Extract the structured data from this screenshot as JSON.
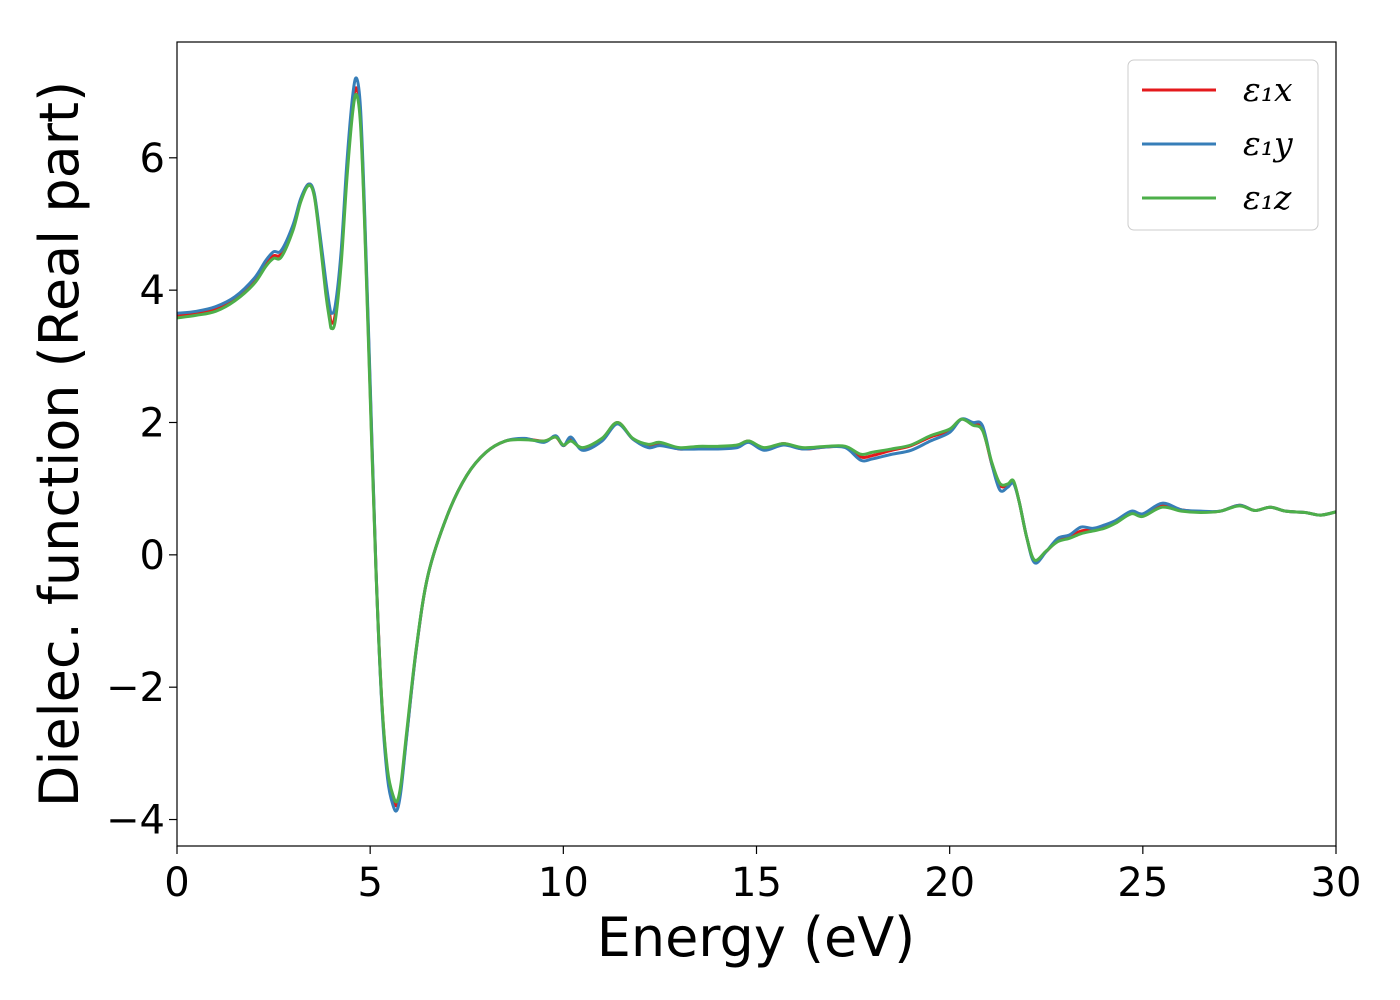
{
  "chart_data": {
    "type": "line",
    "title": "",
    "xlabel": "Energy (eV)",
    "ylabel": "Dielec. function (Real part)",
    "xlim": [
      0,
      30
    ],
    "ylim": [
      -4.4,
      7.75
    ],
    "xticks": [
      0,
      5,
      10,
      15,
      20,
      25,
      30
    ],
    "xtick_labels": [
      "0",
      "5",
      "10",
      "15",
      "20",
      "25",
      "30"
    ],
    "yticks": [
      -4,
      -2,
      0,
      2,
      4,
      6
    ],
    "ytick_labels": [
      "−4",
      "−2",
      "0",
      "2",
      "4",
      "6"
    ],
    "grid": false,
    "legend_position": "top-right",
    "series": [
      {
        "name": "ε₁x",
        "color": "#e41a1c",
        "points": [
          [
            0,
            3.62
          ],
          [
            0.5,
            3.65
          ],
          [
            1.0,
            3.72
          ],
          [
            1.5,
            3.88
          ],
          [
            2.0,
            4.15
          ],
          [
            2.3,
            4.42
          ],
          [
            2.5,
            4.52
          ],
          [
            2.7,
            4.55
          ],
          [
            3.0,
            4.95
          ],
          [
            3.2,
            5.35
          ],
          [
            3.4,
            5.6
          ],
          [
            3.55,
            5.45
          ],
          [
            3.7,
            4.8
          ],
          [
            3.85,
            4.05
          ],
          [
            3.95,
            3.65
          ],
          [
            4.0,
            3.5
          ],
          [
            4.1,
            3.65
          ],
          [
            4.25,
            4.5
          ],
          [
            4.4,
            5.8
          ],
          [
            4.55,
            6.8
          ],
          [
            4.65,
            7.05
          ],
          [
            4.75,
            6.6
          ],
          [
            4.85,
            5.2
          ],
          [
            5.0,
            2.5
          ],
          [
            5.15,
            -0.2
          ],
          [
            5.3,
            -2.2
          ],
          [
            5.45,
            -3.3
          ],
          [
            5.6,
            -3.7
          ],
          [
            5.7,
            -3.78
          ],
          [
            5.8,
            -3.5
          ],
          [
            5.95,
            -2.7
          ],
          [
            6.2,
            -1.4
          ],
          [
            6.5,
            -0.3
          ],
          [
            7.0,
            0.6
          ],
          [
            7.5,
            1.2
          ],
          [
            8.0,
            1.55
          ],
          [
            8.5,
            1.72
          ],
          [
            9.0,
            1.75
          ],
          [
            9.5,
            1.72
          ],
          [
            9.8,
            1.78
          ],
          [
            10.0,
            1.65
          ],
          [
            10.2,
            1.75
          ],
          [
            10.5,
            1.6
          ],
          [
            11.0,
            1.75
          ],
          [
            11.4,
            2.0
          ],
          [
            11.8,
            1.75
          ],
          [
            12.2,
            1.65
          ],
          [
            12.5,
            1.68
          ],
          [
            13.0,
            1.6
          ],
          [
            13.5,
            1.62
          ],
          [
            14.0,
            1.62
          ],
          [
            14.5,
            1.65
          ],
          [
            14.8,
            1.72
          ],
          [
            15.2,
            1.6
          ],
          [
            15.7,
            1.68
          ],
          [
            16.2,
            1.6
          ],
          [
            16.8,
            1.63
          ],
          [
            17.3,
            1.63
          ],
          [
            17.7,
            1.48
          ],
          [
            18.0,
            1.5
          ],
          [
            18.5,
            1.58
          ],
          [
            19.0,
            1.65
          ],
          [
            19.5,
            1.78
          ],
          [
            20.0,
            1.88
          ],
          [
            20.3,
            2.05
          ],
          [
            20.6,
            1.98
          ],
          [
            20.85,
            1.9
          ],
          [
            21.1,
            1.35
          ],
          [
            21.3,
            1.05
          ],
          [
            21.5,
            1.05
          ],
          [
            21.65,
            1.1
          ],
          [
            21.8,
            0.8
          ],
          [
            22.0,
            0.25
          ],
          [
            22.2,
            -0.1
          ],
          [
            22.5,
            0.05
          ],
          [
            22.8,
            0.22
          ],
          [
            23.1,
            0.28
          ],
          [
            23.4,
            0.36
          ],
          [
            23.7,
            0.38
          ],
          [
            24.0,
            0.42
          ],
          [
            24.3,
            0.5
          ],
          [
            24.7,
            0.64
          ],
          [
            25.0,
            0.6
          ],
          [
            25.5,
            0.75
          ],
          [
            26.0,
            0.68
          ],
          [
            26.5,
            0.65
          ],
          [
            27.0,
            0.66
          ],
          [
            27.5,
            0.75
          ],
          [
            27.9,
            0.67
          ],
          [
            28.3,
            0.72
          ],
          [
            28.7,
            0.66
          ],
          [
            29.2,
            0.64
          ],
          [
            29.6,
            0.6
          ],
          [
            30.0,
            0.65
          ]
        ]
      },
      {
        "name": "ε₁y",
        "color": "#377eb8",
        "points": [
          [
            0,
            3.65
          ],
          [
            0.5,
            3.68
          ],
          [
            1.0,
            3.75
          ],
          [
            1.5,
            3.9
          ],
          [
            2.0,
            4.18
          ],
          [
            2.3,
            4.45
          ],
          [
            2.5,
            4.58
          ],
          [
            2.7,
            4.6
          ],
          [
            3.0,
            4.98
          ],
          [
            3.2,
            5.38
          ],
          [
            3.4,
            5.6
          ],
          [
            3.55,
            5.47
          ],
          [
            3.7,
            4.85
          ],
          [
            3.85,
            4.15
          ],
          [
            3.95,
            3.75
          ],
          [
            4.0,
            3.65
          ],
          [
            4.1,
            3.78
          ],
          [
            4.25,
            4.6
          ],
          [
            4.4,
            5.95
          ],
          [
            4.55,
            6.95
          ],
          [
            4.65,
            7.2
          ],
          [
            4.75,
            6.75
          ],
          [
            4.85,
            5.3
          ],
          [
            5.0,
            2.6
          ],
          [
            5.15,
            -0.2
          ],
          [
            5.3,
            -2.25
          ],
          [
            5.45,
            -3.38
          ],
          [
            5.6,
            -3.8
          ],
          [
            5.7,
            -3.85
          ],
          [
            5.8,
            -3.55
          ],
          [
            5.95,
            -2.72
          ],
          [
            6.2,
            -1.4
          ],
          [
            6.5,
            -0.3
          ],
          [
            7.0,
            0.6
          ],
          [
            7.5,
            1.2
          ],
          [
            8.0,
            1.55
          ],
          [
            8.5,
            1.72
          ],
          [
            9.0,
            1.76
          ],
          [
            9.5,
            1.7
          ],
          [
            9.8,
            1.8
          ],
          [
            10.0,
            1.65
          ],
          [
            10.2,
            1.78
          ],
          [
            10.5,
            1.58
          ],
          [
            11.0,
            1.72
          ],
          [
            11.4,
            1.98
          ],
          [
            11.8,
            1.75
          ],
          [
            12.2,
            1.62
          ],
          [
            12.5,
            1.65
          ],
          [
            13.0,
            1.6
          ],
          [
            13.5,
            1.6
          ],
          [
            14.0,
            1.6
          ],
          [
            14.5,
            1.62
          ],
          [
            14.8,
            1.7
          ],
          [
            15.2,
            1.58
          ],
          [
            15.7,
            1.66
          ],
          [
            16.2,
            1.6
          ],
          [
            16.8,
            1.63
          ],
          [
            17.3,
            1.62
          ],
          [
            17.7,
            1.43
          ],
          [
            18.0,
            1.45
          ],
          [
            18.5,
            1.52
          ],
          [
            19.0,
            1.58
          ],
          [
            19.5,
            1.72
          ],
          [
            20.0,
            1.85
          ],
          [
            20.3,
            2.05
          ],
          [
            20.6,
            2.0
          ],
          [
            20.85,
            1.95
          ],
          [
            21.1,
            1.35
          ],
          [
            21.3,
            0.98
          ],
          [
            21.5,
            1.02
          ],
          [
            21.65,
            1.08
          ],
          [
            21.8,
            0.8
          ],
          [
            22.0,
            0.25
          ],
          [
            22.2,
            -0.12
          ],
          [
            22.5,
            0.05
          ],
          [
            22.8,
            0.25
          ],
          [
            23.1,
            0.3
          ],
          [
            23.4,
            0.42
          ],
          [
            23.7,
            0.4
          ],
          [
            24.0,
            0.45
          ],
          [
            24.3,
            0.52
          ],
          [
            24.7,
            0.66
          ],
          [
            25.0,
            0.62
          ],
          [
            25.5,
            0.78
          ],
          [
            26.0,
            0.68
          ],
          [
            26.5,
            0.66
          ],
          [
            27.0,
            0.66
          ],
          [
            27.5,
            0.75
          ],
          [
            27.9,
            0.67
          ],
          [
            28.3,
            0.72
          ],
          [
            28.7,
            0.66
          ],
          [
            29.2,
            0.64
          ],
          [
            29.6,
            0.6
          ],
          [
            30.0,
            0.65
          ]
        ]
      },
      {
        "name": "ε₁z",
        "color": "#4daf4a",
        "points": [
          [
            0,
            3.58
          ],
          [
            0.5,
            3.62
          ],
          [
            1.0,
            3.68
          ],
          [
            1.5,
            3.84
          ],
          [
            2.0,
            4.1
          ],
          [
            2.3,
            4.36
          ],
          [
            2.5,
            4.48
          ],
          [
            2.7,
            4.5
          ],
          [
            3.0,
            4.9
          ],
          [
            3.2,
            5.33
          ],
          [
            3.4,
            5.58
          ],
          [
            3.55,
            5.43
          ],
          [
            3.7,
            4.75
          ],
          [
            3.85,
            3.95
          ],
          [
            3.95,
            3.55
          ],
          [
            4.0,
            3.42
          ],
          [
            4.1,
            3.55
          ],
          [
            4.25,
            4.4
          ],
          [
            4.4,
            5.7
          ],
          [
            4.55,
            6.7
          ],
          [
            4.65,
            6.95
          ],
          [
            4.75,
            6.5
          ],
          [
            4.85,
            5.1
          ],
          [
            5.0,
            2.4
          ],
          [
            5.15,
            -0.25
          ],
          [
            5.3,
            -2.2
          ],
          [
            5.45,
            -3.25
          ],
          [
            5.6,
            -3.65
          ],
          [
            5.7,
            -3.72
          ],
          [
            5.8,
            -3.45
          ],
          [
            5.95,
            -2.65
          ],
          [
            6.2,
            -1.38
          ],
          [
            6.5,
            -0.3
          ],
          [
            7.0,
            0.6
          ],
          [
            7.5,
            1.2
          ],
          [
            8.0,
            1.55
          ],
          [
            8.5,
            1.72
          ],
          [
            9.0,
            1.74
          ],
          [
            9.5,
            1.72
          ],
          [
            9.8,
            1.78
          ],
          [
            10.0,
            1.66
          ],
          [
            10.2,
            1.72
          ],
          [
            10.5,
            1.62
          ],
          [
            11.0,
            1.76
          ],
          [
            11.4,
            2.0
          ],
          [
            11.8,
            1.76
          ],
          [
            12.2,
            1.67
          ],
          [
            12.5,
            1.7
          ],
          [
            13.0,
            1.62
          ],
          [
            13.5,
            1.64
          ],
          [
            14.0,
            1.64
          ],
          [
            14.5,
            1.66
          ],
          [
            14.8,
            1.72
          ],
          [
            15.2,
            1.62
          ],
          [
            15.7,
            1.68
          ],
          [
            16.2,
            1.62
          ],
          [
            16.8,
            1.64
          ],
          [
            17.3,
            1.64
          ],
          [
            17.7,
            1.52
          ],
          [
            18.0,
            1.55
          ],
          [
            18.5,
            1.6
          ],
          [
            19.0,
            1.66
          ],
          [
            19.5,
            1.8
          ],
          [
            20.0,
            1.9
          ],
          [
            20.3,
            2.05
          ],
          [
            20.6,
            1.96
          ],
          [
            20.85,
            1.88
          ],
          [
            21.1,
            1.38
          ],
          [
            21.3,
            1.08
          ],
          [
            21.5,
            1.07
          ],
          [
            21.65,
            1.12
          ],
          [
            21.8,
            0.8
          ],
          [
            22.0,
            0.25
          ],
          [
            22.2,
            -0.08
          ],
          [
            22.5,
            0.06
          ],
          [
            22.8,
            0.2
          ],
          [
            23.1,
            0.25
          ],
          [
            23.4,
            0.32
          ],
          [
            23.7,
            0.36
          ],
          [
            24.0,
            0.4
          ],
          [
            24.3,
            0.48
          ],
          [
            24.7,
            0.62
          ],
          [
            25.0,
            0.58
          ],
          [
            25.5,
            0.72
          ],
          [
            26.0,
            0.66
          ],
          [
            26.5,
            0.64
          ],
          [
            27.0,
            0.66
          ],
          [
            27.5,
            0.74
          ],
          [
            27.9,
            0.67
          ],
          [
            28.3,
            0.72
          ],
          [
            28.7,
            0.66
          ],
          [
            29.2,
            0.64
          ],
          [
            29.6,
            0.6
          ],
          [
            30.0,
            0.65
          ]
        ]
      }
    ]
  }
}
